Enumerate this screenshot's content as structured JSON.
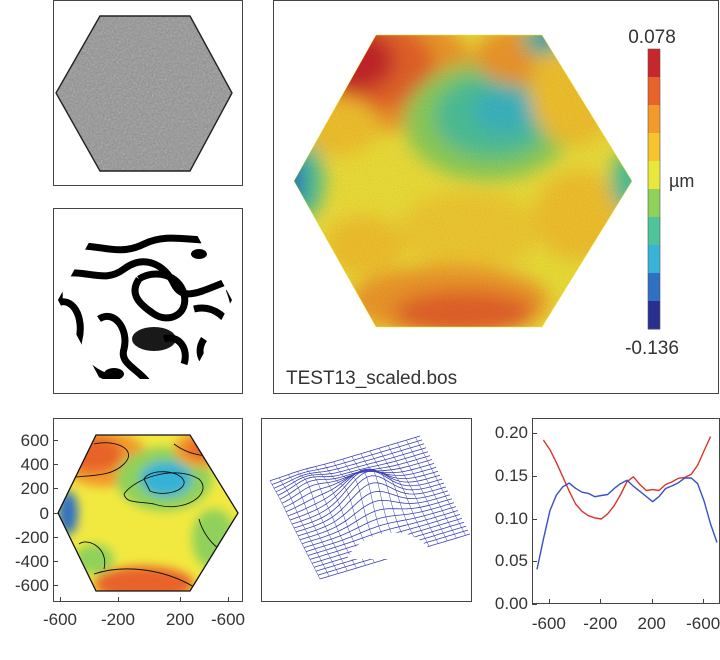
{
  "main_map": {
    "filename": "TEST13_scaled.bos",
    "colorbar": {
      "max_label": "0.078",
      "min_label": "-0.136",
      "unit": "µm",
      "max": 0.078,
      "min": -0.136
    },
    "colors": [
      "#2a2f8f",
      "#2f6fc4",
      "#36b3d6",
      "#4fc49a",
      "#8fd15a",
      "#e9e73b",
      "#f6c52d",
      "#f39a2a",
      "#e8632c",
      "#c8262a"
    ]
  },
  "contour_plot": {
    "y_ticks": [
      "600",
      "400",
      "200",
      "0",
      "-200",
      "-400",
      "-600"
    ],
    "x_ticks": [
      "-600",
      "-200",
      "200",
      "-600"
    ]
  },
  "chart_data": {
    "type": "line",
    "title": "",
    "xlabel": "",
    "ylabel": "",
    "x_tick_labels": [
      "-600",
      "-200",
      "200",
      "-600"
    ],
    "y_tick_labels": [
      "0.20",
      "0.15",
      "0.10",
      "0.05",
      "0.00"
    ],
    "xlim": [
      -700,
      700
    ],
    "ylim": [
      0,
      0.2
    ],
    "grid": false,
    "series": [
      {
        "color": "#d9342b",
        "x": [
          -650,
          -600,
          -550,
          -500,
          -450,
          -400,
          -350,
          -300,
          -250,
          -200,
          -150,
          -100,
          -50,
          0,
          50,
          100,
          150,
          200,
          250,
          300,
          350,
          400,
          450,
          500,
          550,
          600,
          650
        ],
        "y": [
          0.193,
          0.18,
          0.165,
          0.15,
          0.135,
          0.12,
          0.11,
          0.103,
          0.1,
          0.1,
          0.108,
          0.118,
          0.13,
          0.143,
          0.148,
          0.14,
          0.135,
          0.137,
          0.135,
          0.14,
          0.142,
          0.147,
          0.15,
          0.155,
          0.165,
          0.18,
          0.195
        ]
      },
      {
        "color": "#3b4fc4",
        "x": [
          -700,
          -650,
          -600,
          -550,
          -500,
          -450,
          -400,
          -350,
          -300,
          -250,
          -200,
          -150,
          -100,
          -50,
          0,
          50,
          100,
          150,
          200,
          250,
          300,
          350,
          400,
          450,
          500,
          550,
          600,
          650,
          700
        ],
        "y": [
          0.04,
          0.075,
          0.11,
          0.13,
          0.14,
          0.143,
          0.135,
          0.13,
          0.13,
          0.128,
          0.13,
          0.13,
          0.135,
          0.14,
          0.145,
          0.14,
          0.135,
          0.128,
          0.12,
          0.125,
          0.135,
          0.14,
          0.145,
          0.15,
          0.148,
          0.14,
          0.12,
          0.095,
          0.075
        ]
      }
    ]
  }
}
